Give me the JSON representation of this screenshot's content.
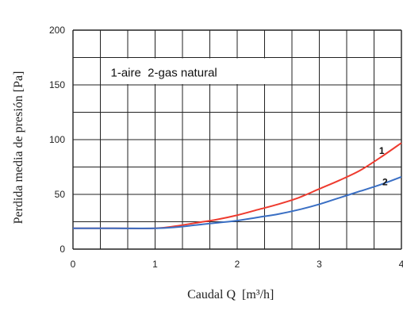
{
  "chart_data": {
    "type": "line",
    "xlabel": "Caudal Q",
    "xlabel_unit": "[m³/h]",
    "ylabel": "Perdida media de presión [Pa]",
    "xlim": [
      0,
      4
    ],
    "ylim": [
      0,
      200
    ],
    "x_ticks": [
      "0",
      "1",
      "2",
      "3",
      "4"
    ],
    "y_ticks": [
      "0",
      "50",
      "100",
      "150",
      "200"
    ],
    "grid": true,
    "legend_text": "1-aire  2-gas natural",
    "legend_placement": "top-left",
    "series": [
      {
        "name": "1",
        "label": "1",
        "color": "#ee3b2f",
        "x": [
          0,
          0.5,
          1.0,
          1.25,
          1.5,
          1.75,
          2.0,
          2.25,
          2.5,
          2.75,
          3.0,
          3.25,
          3.5,
          3.75,
          4.0
        ],
        "y": [
          19,
          19,
          19,
          21,
          24,
          27,
          31,
          36,
          41,
          47,
          55,
          63,
          72,
          84,
          97
        ]
      },
      {
        "name": "2",
        "label": "2",
        "color": "#3a6fc4",
        "x": [
          0,
          0.5,
          1.0,
          1.25,
          1.5,
          1.75,
          2.0,
          2.25,
          2.5,
          2.75,
          3.0,
          3.25,
          3.5,
          3.75,
          4.0
        ],
        "y": [
          19,
          19,
          19,
          20,
          22,
          24,
          26,
          29,
          32,
          36,
          41,
          47,
          53,
          59,
          66
        ]
      }
    ]
  }
}
